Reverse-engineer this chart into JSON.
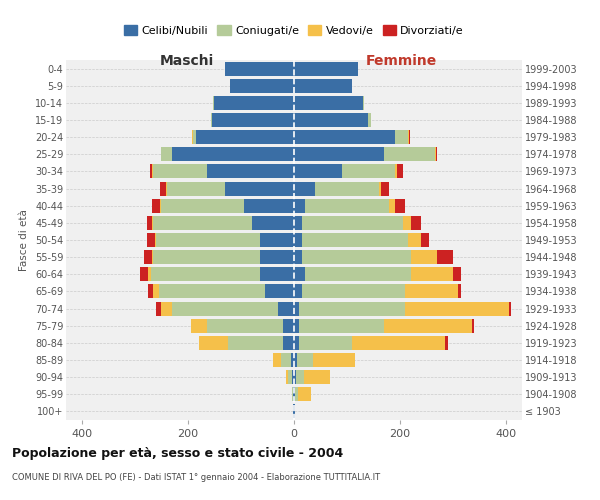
{
  "age_groups": [
    "100+",
    "95-99",
    "90-94",
    "85-89",
    "80-84",
    "75-79",
    "70-74",
    "65-69",
    "60-64",
    "55-59",
    "50-54",
    "45-49",
    "40-44",
    "35-39",
    "30-34",
    "25-29",
    "20-24",
    "15-19",
    "10-14",
    "5-9",
    "0-4"
  ],
  "birth_years": [
    "≤ 1903",
    "1904-1908",
    "1909-1913",
    "1914-1918",
    "1919-1923",
    "1924-1928",
    "1929-1933",
    "1934-1938",
    "1939-1943",
    "1944-1948",
    "1949-1953",
    "1954-1958",
    "1959-1963",
    "1964-1968",
    "1969-1973",
    "1974-1978",
    "1979-1983",
    "1984-1988",
    "1989-1993",
    "1994-1998",
    "1999-2003"
  ],
  "maschi": {
    "celibi": [
      1,
      1,
      3,
      5,
      20,
      20,
      30,
      55,
      65,
      65,
      65,
      80,
      95,
      130,
      165,
      230,
      185,
      155,
      150,
      120,
      130
    ],
    "coniugati": [
      0,
      2,
      8,
      20,
      105,
      145,
      200,
      200,
      205,
      200,
      195,
      185,
      155,
      110,
      100,
      20,
      5,
      2,
      2,
      0,
      0
    ],
    "vedovi": [
      0,
      0,
      5,
      15,
      55,
      30,
      20,
      10,
      5,
      2,
      2,
      2,
      2,
      2,
      2,
      0,
      2,
      0,
      0,
      0,
      0
    ],
    "divorziati": [
      0,
      0,
      0,
      0,
      0,
      0,
      10,
      10,
      15,
      15,
      15,
      10,
      15,
      10,
      5,
      0,
      0,
      0,
      0,
      0,
      0
    ]
  },
  "femmine": {
    "nubili": [
      1,
      2,
      3,
      5,
      10,
      10,
      10,
      15,
      20,
      15,
      15,
      15,
      20,
      40,
      90,
      170,
      190,
      140,
      130,
      110,
      120
    ],
    "coniugate": [
      0,
      5,
      15,
      30,
      100,
      160,
      200,
      195,
      200,
      205,
      200,
      190,
      160,
      120,
      100,
      95,
      25,
      5,
      2,
      0,
      0
    ],
    "vedove": [
      1,
      25,
      50,
      80,
      175,
      165,
      195,
      100,
      80,
      50,
      25,
      15,
      10,
      5,
      5,
      2,
      2,
      0,
      0,
      0,
      0
    ],
    "divorziate": [
      0,
      0,
      0,
      0,
      5,
      5,
      5,
      5,
      15,
      30,
      15,
      20,
      20,
      15,
      10,
      2,
      2,
      0,
      0,
      0,
      0
    ]
  },
  "colors": {
    "celibi": "#3a6ea5",
    "coniugati": "#b5cb99",
    "vedovi": "#f5c04a",
    "divorziati": "#cc2222"
  },
  "title": "Popolazione per età, sesso e stato civile - 2004",
  "subtitle": "COMUNE DI RIVA DEL PO (FE) - Dati ISTAT 1° gennaio 2004 - Elaborazione TUTTITALIA.IT",
  "xlabel_left": "Maschi",
  "xlabel_right": "Femmine",
  "ylabel_left": "Fasce di età",
  "xlim": 430,
  "legend_labels": [
    "Celibi/Nubili",
    "Coniugati/e",
    "Vedovi/e",
    "Divorziati/e"
  ],
  "background_color": "#ffffff"
}
